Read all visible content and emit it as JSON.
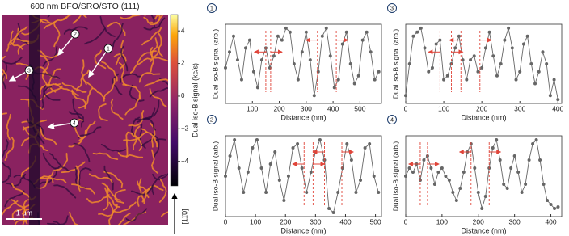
{
  "image": {
    "title": "600 nm BFO/SRO/STO (111)",
    "scale_bar": "1 µm",
    "direction": "[11̄0]",
    "markers": [
      "1",
      "2",
      "3",
      "4"
    ],
    "colorbar": {
      "label": "Dual iso-B signal (kc/s)",
      "lim": [
        -5.5,
        5
      ],
      "ticks": [
        {
          "value": -4,
          "label": "−4"
        },
        {
          "value": -2,
          "label": "−2"
        },
        0,
        2,
        4
      ]
    }
  },
  "chart_data": [
    {
      "type": "line",
      "panel": "1",
      "xlabel": "Distance (nm)",
      "ylabel": "Dual iso-B signal (arb.)",
      "color": "#666666",
      "guide_color": "#e0453a",
      "xlim": [
        0,
        580
      ],
      "xticks": [
        100,
        200,
        300,
        400,
        500
      ],
      "ylim": [
        0,
        1
      ],
      "x": [
        0,
        15,
        30,
        45,
        60,
        75,
        90,
        105,
        120,
        135,
        150,
        165,
        180,
        195,
        210,
        225,
        240,
        255,
        270,
        285,
        300,
        315,
        330,
        345,
        360,
        375,
        390,
        405,
        420,
        435,
        450,
        465,
        480,
        495,
        510,
        525,
        540,
        555,
        570
      ],
      "values": [
        0.45,
        0.65,
        0.85,
        0.55,
        0.3,
        0.7,
        0.8,
        0.4,
        0.2,
        0.55,
        0.7,
        0.45,
        0.6,
        0.85,
        0.8,
        0.95,
        0.9,
        0.5,
        0.3,
        0.65,
        0.9,
        0.55,
        0.1,
        0.4,
        0.85,
        0.95,
        0.6,
        0.2,
        0.3,
        0.75,
        0.9,
        0.5,
        0.25,
        0.35,
        0.8,
        0.9,
        0.65,
        0.3,
        0.4
      ],
      "guides": [
        150,
        168,
        342,
        412
      ]
    },
    {
      "type": "line",
      "panel": "2",
      "xlabel": "Distance (nm)",
      "ylabel": "Dual iso-B signal (arb.)",
      "color": "#666666",
      "guide_color": "#e0453a",
      "xlim": [
        0,
        520
      ],
      "xticks": [
        0,
        100,
        200,
        300,
        400,
        500
      ],
      "ylim": [
        0,
        1
      ],
      "x": [
        0,
        15,
        30,
        45,
        60,
        75,
        90,
        105,
        120,
        135,
        150,
        165,
        180,
        195,
        210,
        225,
        240,
        255,
        270,
        285,
        300,
        315,
        330,
        345,
        360,
        375,
        390,
        405,
        420,
        435,
        450,
        465,
        480,
        495,
        510
      ],
      "values": [
        0.5,
        0.75,
        0.95,
        0.6,
        0.3,
        0.55,
        0.85,
        0.95,
        0.6,
        0.3,
        0.65,
        0.8,
        0.45,
        0.2,
        0.5,
        0.85,
        0.9,
        0.6,
        0.3,
        0.55,
        0.8,
        0.95,
        0.7,
        0.1,
        0.05,
        0.3,
        0.6,
        0.9,
        0.7,
        0.3,
        0.45,
        0.85,
        0.9,
        0.5,
        0.3
      ],
      "guides": [
        262,
        292,
        330,
        388
      ]
    },
    {
      "type": "line",
      "panel": "3",
      "xlabel": "Distance (nm)",
      "ylabel": "Dual iso-B signal (arb.)",
      "color": "#666666",
      "guide_color": "#e0453a",
      "xlim": [
        0,
        410
      ],
      "xticks": [
        0,
        100,
        200,
        300,
        400
      ],
      "ylim": [
        0,
        1
      ],
      "x": [
        0,
        10,
        20,
        30,
        40,
        50,
        60,
        70,
        80,
        90,
        100,
        110,
        120,
        130,
        140,
        150,
        160,
        170,
        180,
        190,
        200,
        210,
        220,
        230,
        240,
        250,
        260,
        270,
        280,
        290,
        300,
        310,
        320,
        330,
        340,
        350,
        360,
        370,
        380,
        390,
        400
      ],
      "values": [
        0.1,
        0.5,
        0.85,
        0.9,
        0.95,
        0.7,
        0.4,
        0.45,
        0.75,
        0.8,
        0.3,
        0.35,
        0.5,
        0.7,
        0.85,
        0.55,
        0.3,
        0.55,
        0.6,
        0.4,
        0.45,
        0.7,
        0.9,
        0.6,
        0.35,
        0.5,
        0.8,
        0.95,
        0.7,
        0.3,
        0.4,
        0.75,
        0.85,
        0.5,
        0.25,
        0.4,
        0.65,
        0.5,
        0.1,
        0.3,
        0.05
      ],
      "guides": [
        90,
        120,
        145,
        195
      ]
    },
    {
      "type": "line",
      "panel": "4",
      "xlabel": "Distance (nm)",
      "ylabel": "Dual iso-B signal (arb.)",
      "color": "#666666",
      "guide_color": "#e0453a",
      "xlim": [
        0,
        430
      ],
      "xticks": [
        0,
        100,
        200,
        300,
        400
      ],
      "ylim": [
        0,
        1
      ],
      "x": [
        0,
        10,
        20,
        30,
        40,
        50,
        60,
        70,
        80,
        90,
        100,
        110,
        120,
        130,
        140,
        150,
        160,
        170,
        180,
        190,
        200,
        210,
        220,
        230,
        240,
        250,
        260,
        270,
        280,
        290,
        300,
        310,
        320,
        330,
        340,
        350,
        360,
        370,
        380,
        390,
        400,
        410,
        420
      ],
      "values": [
        0.5,
        0.6,
        0.55,
        0.65,
        0.45,
        0.7,
        0.75,
        0.6,
        0.4,
        0.55,
        0.6,
        0.5,
        0.45,
        0.3,
        0.2,
        0.35,
        0.55,
        0.8,
        0.9,
        0.6,
        0.3,
        0.1,
        0.25,
        0.6,
        0.85,
        0.95,
        0.7,
        0.4,
        0.35,
        0.6,
        0.75,
        0.55,
        0.3,
        0.4,
        0.7,
        0.9,
        0.95,
        0.7,
        0.4,
        0.2,
        0.15,
        0.1,
        0.12
      ],
      "guides": [
        40,
        60,
        180,
        230
      ]
    }
  ]
}
